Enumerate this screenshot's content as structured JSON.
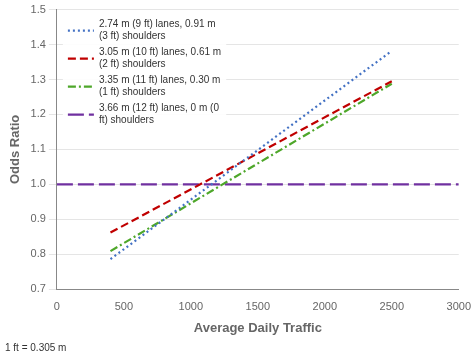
{
  "chart_data": {
    "type": "line",
    "xlabel": "Average Daily Traffic",
    "ylabel": "Odds Ratio",
    "xlim": [
      0,
      3000
    ],
    "ylim": [
      0.7,
      1.5
    ],
    "xticks": [
      0,
      500,
      1000,
      1500,
      2000,
      2500,
      3000
    ],
    "yticks": [
      0.7,
      0.8,
      0.9,
      {
        "value": 1.0,
        "label": "1.0"
      },
      1.1,
      1.2,
      1.3,
      1.4,
      1.5
    ],
    "grid": "y",
    "legend": "upper left",
    "annotations": [
      "1 ft = 0.305 m"
    ],
    "series": [
      {
        "name": "2.74 m (9 ft) lanes, 0.91 m\n(3 ft) shoulders",
        "color": "#4472C4",
        "line_style": "dotted",
        "x": [
          400,
          2500
        ],
        "values": [
          0.786,
          1.382
        ]
      },
      {
        "name": "3.05 m (10 ft) lanes, 0.61 m\n(2 ft) shoulders",
        "color": "#C00000",
        "line_style": "dashed",
        "x": [
          400,
          2500
        ],
        "values": [
          0.862,
          1.295
        ]
      },
      {
        "name": "3.35 m (11 ft) lanes, 0.30 m\n(1 ft) shoulders",
        "color": "#4EA72A",
        "line_style": "dashdot",
        "x": [
          400,
          2500
        ],
        "values": [
          0.809,
          1.288
        ]
      },
      {
        "name": "3.66 m (12 ft) lanes, 0 m (0\nft) shoulders",
        "color": "#7030A0",
        "line_style": "longdash",
        "x": [
          0,
          3000
        ],
        "values": [
          1.0,
          1.0
        ]
      }
    ]
  }
}
